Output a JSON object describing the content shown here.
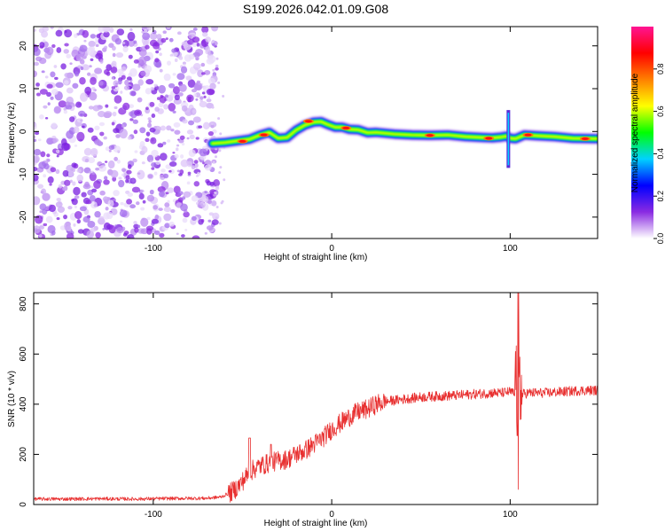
{
  "title": "S199.2026.042.01.09.G08",
  "chart_data": [
    {
      "type": "heatmap",
      "xlabel": "Height of straight line (km)",
      "ylabel": "Frequency (Hz)",
      "xlim": [
        -167,
        149
      ],
      "ylim": [
        -25,
        24.5
      ],
      "xticks": [
        -100,
        0,
        100
      ],
      "yticks": [
        -20,
        -10,
        0,
        10,
        20
      ],
      "noise_region_x": [
        -167,
        -67
      ],
      "ridge": {
        "x": [
          -67,
          -60,
          -53,
          -46,
          -40,
          -35,
          -30,
          -25,
          -20,
          -15,
          -10,
          -6,
          -2,
          2,
          6,
          10,
          15,
          20,
          25,
          35,
          45,
          55,
          65,
          75,
          85,
          90,
          95,
          98,
          100,
          103,
          108,
          115,
          125,
          135,
          149
        ],
        "freq": [
          -2.8,
          -2.6,
          -2.2,
          -1.8,
          -0.8,
          -0.2,
          -1.6,
          -1.4,
          0.3,
          1.5,
          2.2,
          2.3,
          1.6,
          1.0,
          1.0,
          0.5,
          0.4,
          -0.3,
          -0.2,
          -0.6,
          -0.8,
          -0.9,
          -0.8,
          -1.2,
          -1.4,
          -1.5,
          -1.3,
          -1.1,
          -1.6,
          -1.7,
          -0.8,
          -1.0,
          -1.2,
          -1.6,
          -1.7
        ]
      },
      "hot_spots": [
        {
          "x": -50,
          "freq": -2.3
        },
        {
          "x": -38,
          "freq": -0.8
        },
        {
          "x": -13,
          "freq": 2.4
        },
        {
          "x": 8,
          "freq": 0.8
        },
        {
          "x": 55,
          "freq": -0.9
        },
        {
          "x": 88,
          "freq": -1.6
        },
        {
          "x": 110,
          "freq": -0.8
        },
        {
          "x": 142,
          "freq": -1.7
        }
      ],
      "spikes": [
        {
          "x": 99,
          "freq_range": [
            -8.5,
            5.0
          ]
        }
      ],
      "colorbar": {
        "label": "Normalized spectral amplitude",
        "range": [
          0,
          1
        ],
        "ticks": [
          "0.0",
          "0.2",
          "0.4",
          "0.6",
          "0.8"
        ],
        "tick_values": [
          0,
          0.2,
          0.4,
          0.6,
          0.8
        ],
        "colors": [
          "#ffffff",
          "#8a2be2",
          "#0000ff",
          "#00d2ff",
          "#00ff00",
          "#ffff00",
          "#ff8000",
          "#ff0000",
          "#ff1493"
        ]
      }
    },
    {
      "type": "line",
      "xlabel": "Height of straight line (km)",
      "ylabel": "SNR (10 * v/v)",
      "xlim": [
        -167,
        149
      ],
      "ylim": [
        0,
        845
      ],
      "xticks": [
        -100,
        0,
        100
      ],
      "yticks": [
        0,
        200,
        400,
        600,
        800
      ],
      "color": "#e83030",
      "series": [
        {
          "name": "SNR",
          "x": [
            -167,
            -150,
            -130,
            -110,
            -90,
            -70,
            -62,
            -56,
            -52,
            -48,
            -44,
            -40,
            -35,
            -30,
            -25,
            -20,
            -15,
            -10,
            -5,
            0,
            5,
            10,
            15,
            20,
            25,
            30,
            40,
            50,
            60,
            70,
            80,
            90,
            95,
            100,
            103,
            105,
            107,
            110,
            120,
            130,
            140,
            149
          ],
          "y": [
            22,
            22,
            23,
            22,
            24,
            25,
            30,
            50,
            75,
            110,
            140,
            155,
            165,
            175,
            180,
            200,
            215,
            240,
            265,
            300,
            325,
            350,
            370,
            380,
            400,
            410,
            420,
            428,
            432,
            435,
            440,
            445,
            445,
            450,
            440,
            430,
            440,
            445,
            445,
            450,
            455,
            455
          ]
        }
      ],
      "events": [
        {
          "x": 104.5,
          "y_max": 845,
          "y_min": 60
        }
      ]
    }
  ]
}
